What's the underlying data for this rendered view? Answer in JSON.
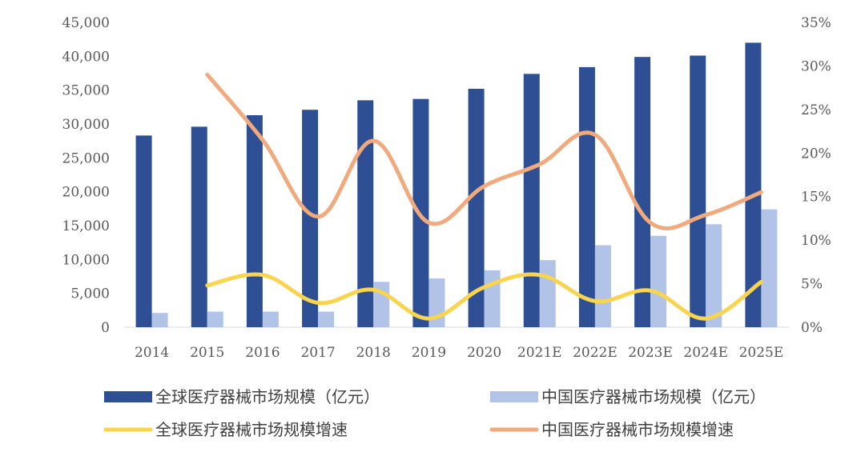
{
  "chart_data": {
    "type": "bar",
    "categories": [
      "2014",
      "2015",
      "2016",
      "2017",
      "2018",
      "2019",
      "2020",
      "2021E",
      "2022E",
      "2023E",
      "2024E",
      "2025E"
    ],
    "series": [
      {
        "name": "全球医疗器械市场规模（亿元）",
        "type": "bar",
        "axis": "left",
        "color": "#2e4f93",
        "values": [
          28300,
          29600,
          31300,
          32100,
          33500,
          33700,
          35200,
          37400,
          38400,
          39900,
          40100,
          42000
        ]
      },
      {
        "name": "中国医疗器械市场规模（亿元）",
        "type": "bar",
        "axis": "left",
        "color": "#b1c3e7",
        "values": [
          2100,
          2300,
          2300,
          2300,
          6700,
          7200,
          8400,
          9900,
          12100,
          13500,
          15200,
          17400
        ]
      },
      {
        "name": "全球医疗器械市场规模增速",
        "type": "line",
        "axis": "right",
        "color": "#f8d44f",
        "values": [
          null,
          4.8,
          6.0,
          2.8,
          4.3,
          1.0,
          4.6,
          6.0,
          3.0,
          4.2,
          1.0,
          5.2
        ]
      },
      {
        "name": "中国医疗器械市场规模增速",
        "type": "line",
        "axis": "right",
        "color": "#f1aa7e",
        "values": [
          null,
          29.0,
          21.5,
          12.7,
          21.4,
          12.0,
          16.2,
          18.7,
          22.1,
          12.0,
          12.9,
          15.5
        ]
      }
    ],
    "y_left": {
      "min": 0,
      "max": 45000,
      "ticks": [
        0,
        5000,
        10000,
        15000,
        20000,
        25000,
        30000,
        35000,
        40000,
        45000
      ],
      "tick_labels": [
        "0",
        "5,000",
        "10,000",
        "15,000",
        "20,000",
        "25,000",
        "30,000",
        "35,000",
        "40,000",
        "45,000"
      ]
    },
    "y_right": {
      "min": 0,
      "max": 35,
      "ticks": [
        0,
        5,
        10,
        15,
        20,
        25,
        30,
        35
      ],
      "tick_labels": [
        "0%",
        "5%",
        "10%",
        "15%",
        "20%",
        "25%",
        "30%",
        "35%"
      ]
    },
    "title": "",
    "xlabel": "",
    "ylabel": "",
    "grid": false,
    "legend_position": "bottom"
  }
}
